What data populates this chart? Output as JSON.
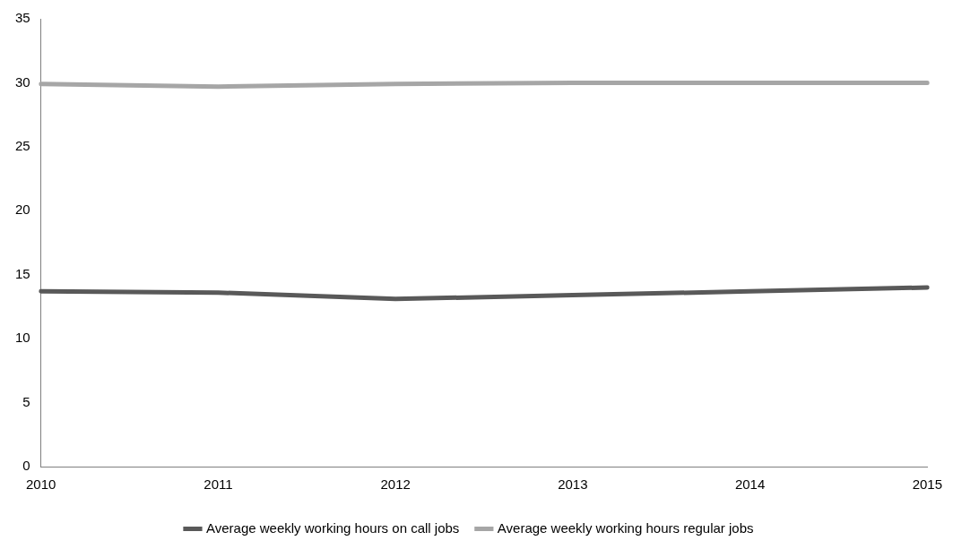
{
  "chart_data": {
    "type": "line",
    "categories": [
      "2010",
      "2011",
      "2012",
      "2013",
      "2014",
      "2015"
    ],
    "series": [
      {
        "name": "Average weekly working hours on call jobs",
        "color": "#595959",
        "values": [
          13.7,
          13.6,
          13.1,
          13.4,
          13.7,
          14.0
        ]
      },
      {
        "name": "Average weekly working hours regular jobs",
        "color": "#a6a6a6",
        "values": [
          29.9,
          29.7,
          29.9,
          30.0,
          30.0,
          30.0
        ]
      }
    ],
    "ylim": [
      0,
      35
    ],
    "yticks": [
      0,
      5,
      10,
      15,
      20,
      25,
      30,
      35
    ],
    "grid": false,
    "legend": "bottom",
    "marker": "none",
    "line_style": "solid"
  }
}
